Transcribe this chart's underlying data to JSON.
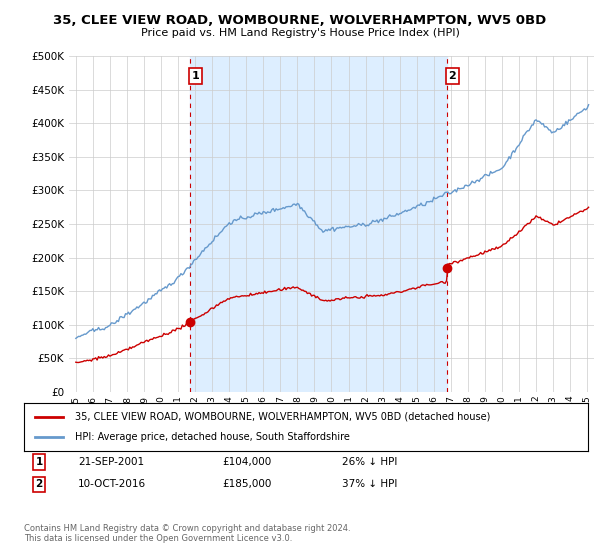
{
  "title": "35, CLEE VIEW ROAD, WOMBOURNE, WOLVERHAMPTON, WV5 0BD",
  "subtitle": "Price paid vs. HM Land Registry's House Price Index (HPI)",
  "red_label": "35, CLEE VIEW ROAD, WOMBOURNE, WOLVERHAMPTON, WV5 0BD (detached house)",
  "blue_label": "HPI: Average price, detached house, South Staffordshire",
  "annotation1_date": "21-SEP-2001",
  "annotation1_price": "£104,000",
  "annotation1_hpi": "26% ↓ HPI",
  "annotation1_year": 2001.72,
  "annotation1_value": 104000,
  "annotation2_date": "10-OCT-2016",
  "annotation2_price": "£185,000",
  "annotation2_hpi": "37% ↓ HPI",
  "annotation2_year": 2016.78,
  "annotation2_value": 185000,
  "footer": "Contains HM Land Registry data © Crown copyright and database right 2024.\nThis data is licensed under the Open Government Licence v3.0.",
  "ylim": [
    0,
    500000
  ],
  "yticks": [
    0,
    50000,
    100000,
    150000,
    200000,
    250000,
    300000,
    350000,
    400000,
    450000,
    500000
  ],
  "background_color": "#ffffff",
  "red_color": "#cc0000",
  "blue_color": "#6699cc",
  "shade_color": "#ddeeff",
  "grid_color": "#cccccc"
}
